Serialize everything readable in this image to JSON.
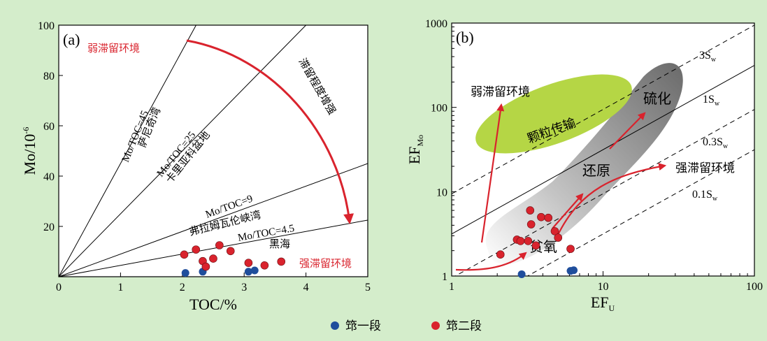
{
  "colors": {
    "background": "#d4edcb",
    "red": "#d9232d",
    "blue": "#1f4e9c",
    "green": "#b5d645",
    "gray": "#8a8a8a"
  },
  "legend": [
    {
      "label": "筇一段",
      "color": "#1f4e9c"
    },
    {
      "label": "筇二段",
      "color": "#d9232d"
    }
  ],
  "chart_data": [
    {
      "type": "scatter",
      "panel_label": "(a)",
      "xlabel": "TOC/%",
      "ylabel_base": "Mo/10",
      "ylabel_exp": "-6",
      "xlim": [
        0,
        5
      ],
      "ylim": [
        0,
        100
      ],
      "xticks": [
        "0",
        "1",
        "2",
        "3",
        "4",
        "5"
      ],
      "yticks": [
        "20",
        "40",
        "60",
        "80",
        "100"
      ],
      "ref_lines": [
        {
          "label": "Mo/TOC=45",
          "basin": "萨尼奇湾",
          "slope": 45
        },
        {
          "label": "Mo/TOC=25",
          "basin": "卡里亚科盆地",
          "slope": 25
        },
        {
          "label": "Mo/TOC=9",
          "basin": "弗拉姆瓦伦峡湾",
          "slope": 9
        },
        {
          "label": "Mo/TOC=4.5",
          "basin": "黑海",
          "slope": 4.5
        }
      ],
      "annotations": {
        "weak": "弱滞留环境",
        "strong": "强滞留环境",
        "trend": "滞留程度增强"
      },
      "series": [
        {
          "name": "筇一段",
          "points": [
            [
              2.05,
              1.5
            ],
            [
              2.33,
              2
            ],
            [
              3.07,
              2
            ],
            [
              3.17,
              2.5
            ]
          ]
        },
        {
          "name": "筇二段",
          "points": [
            [
              2.03,
              8.8
            ],
            [
              2.22,
              10.8
            ],
            [
              2.33,
              6.2
            ],
            [
              2.38,
              4
            ],
            [
              2.5,
              7.2
            ],
            [
              2.6,
              12.5
            ],
            [
              2.78,
              10.2
            ],
            [
              3.07,
              5.5
            ],
            [
              3.33,
              4.5
            ],
            [
              3.6,
              6
            ]
          ]
        }
      ]
    },
    {
      "type": "scatter",
      "scale": "log",
      "panel_label": "(b)",
      "xlabel_base": "EF",
      "xlabel_sub": "U",
      "ylabel_base": "EF",
      "ylabel_sub": "Mo",
      "xlim": [
        1,
        100
      ],
      "ylim": [
        1,
        1000
      ],
      "xticks": [
        "1",
        "10",
        "100"
      ],
      "yticks": [
        "1",
        "10",
        "100",
        "1000"
      ],
      "ref_lines": [
        {
          "label_main": "3S",
          "label_sub": "w",
          "factor": 3,
          "style": "dashed"
        },
        {
          "label_main": "1S",
          "label_sub": "w",
          "factor": 1,
          "style": "solid"
        },
        {
          "label_main": "0.3S",
          "label_sub": "w",
          "factor": 0.3,
          "style": "dashed"
        },
        {
          "label_main": "0.1S",
          "label_sub": "w",
          "factor": 0.1,
          "style": "dashed"
        }
      ],
      "annotations": {
        "weak": "弱滞留环境",
        "particle": "颗粒传输",
        "sulfide": "硫化",
        "reduction": "还原",
        "strong": "强滞留环境",
        "anoxic": "贫氧"
      },
      "series": [
        {
          "name": "筇一段",
          "points": [
            [
              2.9,
              1.05
            ],
            [
              6.1,
              1.15
            ],
            [
              6.4,
              1.17
            ]
          ]
        },
        {
          "name": "筇二段",
          "points": [
            [
              2.1,
              1.8
            ],
            [
              2.7,
              2.7
            ],
            [
              2.85,
              2.6
            ],
            [
              3.3,
              6
            ],
            [
              3.35,
              4.1
            ],
            [
              3.9,
              5
            ],
            [
              4.35,
              4.9
            ],
            [
              4.8,
              3.4
            ],
            [
              5.05,
              2.85
            ],
            [
              3.2,
              2.6
            ],
            [
              3.6,
              2.3
            ],
            [
              6.1,
              2.1
            ]
          ]
        }
      ]
    }
  ]
}
